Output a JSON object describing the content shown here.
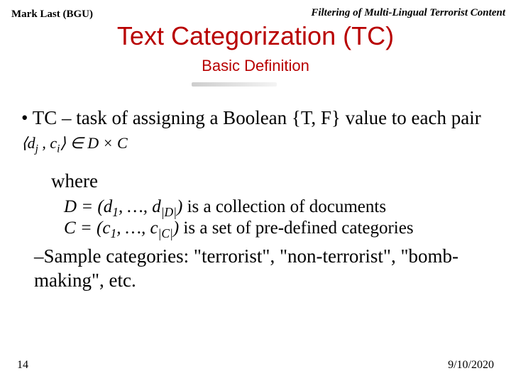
{
  "header": {
    "left": "Mark Last (BGU)",
    "right": "Filtering of Multi-Lingual Terrorist Content"
  },
  "title": "Text Categorization (TC)",
  "subtitle": "Basic Definition",
  "bullet": {
    "prefix": "• TC – task of assigning a Boolean {T, F} value to each pair ",
    "math_pair": "⟨dj , ci⟩ ∈ D × C"
  },
  "where": "where",
  "def_d": {
    "lhs": "D = (d",
    "sub1": "1",
    "mid": ", …, d",
    "sub2": "|D|",
    "rhs": ") is a collection of documents"
  },
  "def_c": {
    "lhs": "C = (c",
    "sub1": "1",
    "mid": ", …, c",
    "sub2": "|C|",
    "rhs": ") is a set of pre-defined categories"
  },
  "sample": "–Sample categories: \"terrorist\", \"non-terrorist\", \"bomb-making\", etc.",
  "footer": {
    "page": "14",
    "date": "9/10/2020"
  },
  "colors": {
    "title_color": "#b80000",
    "text_color": "#000000",
    "background": "#ffffff"
  }
}
